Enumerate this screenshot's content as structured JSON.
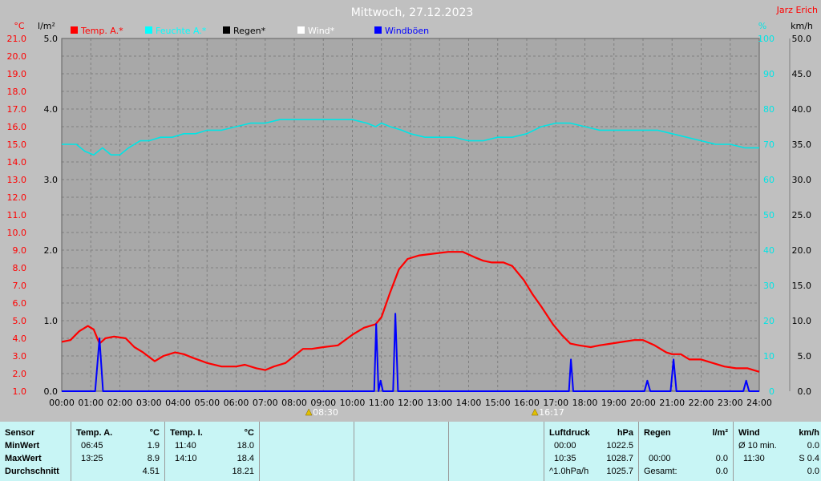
{
  "chart_data": {
    "type": "line",
    "title": "Mittwoch, 27.12.2023",
    "author": "Jarz Erich",
    "legend": [
      {
        "label": "Temp. A.*",
        "color": "#ff0000"
      },
      {
        "label": "Feuchte A.*",
        "color": "#00ffff"
      },
      {
        "label": "Regen*",
        "color": "#000000"
      },
      {
        "label": "Wind*",
        "color": "#ffffff"
      },
      {
        "label": "Windböen",
        "color": "#0000ff"
      }
    ],
    "axes": {
      "temp": {
        "unit": "°C",
        "range": [
          1.0,
          21.0
        ],
        "ticks": [
          "1.0",
          "2.0",
          "3.0",
          "4.0",
          "5.0",
          "6.0",
          "7.0",
          "8.0",
          "9.0",
          "10.0",
          "11.0",
          "12.0",
          "13.0",
          "14.0",
          "15.0",
          "16.0",
          "17.0",
          "18.0",
          "19.0",
          "20.0",
          "21.0"
        ]
      },
      "rain": {
        "unit": "l/m²",
        "range": [
          0.0,
          5.0
        ],
        "ticks": [
          "0.0",
          "1.0",
          "2.0",
          "3.0",
          "4.0",
          "5.0"
        ]
      },
      "humidity": {
        "unit": "%",
        "range": [
          0,
          100
        ],
        "ticks": [
          "0",
          "10",
          "20",
          "30",
          "40",
          "50",
          "60",
          "70",
          "80",
          "90",
          "100"
        ]
      },
      "wind": {
        "unit": "km/h",
        "range": [
          0.0,
          50.0
        ],
        "ticks": [
          "0.0",
          "5.0",
          "10.0",
          "15.0",
          "20.0",
          "25.0",
          "30.0",
          "35.0",
          "40.0",
          "45.0",
          "50.0"
        ]
      },
      "x": {
        "range": [
          0,
          24
        ],
        "ticks": [
          "00:00",
          "01:00",
          "02:00",
          "03:00",
          "04:00",
          "05:00",
          "06:00",
          "07:00",
          "08:00",
          "09:00",
          "10:00",
          "11:00",
          "12:00",
          "13:00",
          "14:00",
          "15:00",
          "16:00",
          "17:00",
          "18:00",
          "19:00",
          "20:00",
          "21:00",
          "22:00",
          "23:00",
          "24:00"
        ]
      }
    },
    "sun_events": [
      {
        "label": "08:30",
        "hour": 8.5
      },
      {
        "label": "16:17",
        "hour": 16.28
      }
    ],
    "series": [
      {
        "name": "Temp. A.*",
        "axis": "temp",
        "color": "#ff0000",
        "x": [
          0,
          0.3,
          0.6,
          0.9,
          1.1,
          1.3,
          1.5,
          1.8,
          2.2,
          2.5,
          2.8,
          3.2,
          3.5,
          3.9,
          4.2,
          4.5,
          5.0,
          5.5,
          6.0,
          6.3,
          6.7,
          7.0,
          7.3,
          7.7,
          8.0,
          8.3,
          8.6,
          9.0,
          9.5,
          10.0,
          10.4,
          10.8,
          11.0,
          11.3,
          11.6,
          11.9,
          12.3,
          12.8,
          13.3,
          13.8,
          14.2,
          14.5,
          14.8,
          15.2,
          15.5,
          15.9,
          16.2,
          16.5,
          16.9,
          17.2,
          17.5,
          17.8,
          18.2,
          18.5,
          18.9,
          19.3,
          19.7,
          20.0,
          20.4,
          20.8,
          21.0,
          21.3,
          21.6,
          22.0,
          22.4,
          22.8,
          23.2,
          23.6,
          24.0
        ],
        "y": [
          3.8,
          3.9,
          4.4,
          4.7,
          4.5,
          3.7,
          4.0,
          4.1,
          4.0,
          3.5,
          3.2,
          2.7,
          3.0,
          3.2,
          3.1,
          2.9,
          2.6,
          2.4,
          2.4,
          2.5,
          2.3,
          2.2,
          2.4,
          2.6,
          3.0,
          3.4,
          3.4,
          3.5,
          3.6,
          4.2,
          4.6,
          4.8,
          5.2,
          6.6,
          7.9,
          8.5,
          8.7,
          8.8,
          8.9,
          8.9,
          8.6,
          8.4,
          8.3,
          8.3,
          8.1,
          7.3,
          6.5,
          5.8,
          4.8,
          4.2,
          3.7,
          3.6,
          3.5,
          3.6,
          3.7,
          3.8,
          3.9,
          3.9,
          3.6,
          3.2,
          3.1,
          3.1,
          2.8,
          2.8,
          2.6,
          2.4,
          2.3,
          2.3,
          2.1
        ]
      },
      {
        "name": "Feuchte A.*",
        "axis": "humidity",
        "color": "#00e5e5",
        "x": [
          0,
          0.5,
          0.8,
          1.1,
          1.4,
          1.7,
          2.0,
          2.3,
          2.7,
          3.0,
          3.4,
          3.8,
          4.2,
          4.6,
          5.0,
          5.5,
          6.0,
          6.5,
          7.0,
          7.5,
          8.0,
          8.5,
          9.0,
          9.5,
          10.0,
          10.5,
          10.8,
          11.0,
          11.3,
          11.7,
          12.0,
          12.5,
          13.0,
          13.5,
          14.0,
          14.5,
          15.0,
          15.5,
          16.0,
          16.5,
          17.0,
          17.5,
          18.0,
          18.5,
          19.0,
          19.5,
          20.0,
          20.5,
          21.0,
          21.5,
          22.0,
          22.5,
          23.0,
          23.5,
          24.0
        ],
        "y": [
          70,
          70,
          68,
          67,
          69,
          67,
          67,
          69,
          71,
          71,
          72,
          72,
          73,
          73,
          74,
          74,
          75,
          76,
          76,
          77,
          77,
          77,
          77,
          77,
          77,
          76,
          75,
          76,
          75,
          74,
          73,
          72,
          72,
          72,
          71,
          71,
          72,
          72,
          73,
          75,
          76,
          76,
          75,
          74,
          74,
          74,
          74,
          74,
          73,
          72,
          71,
          70,
          70,
          69,
          69
        ]
      },
      {
        "name": "Windböen",
        "axis": "wind",
        "color": "#0000ff",
        "x": [
          0,
          1.15,
          1.3,
          1.42,
          1.55,
          10.75,
          10.82,
          10.9,
          10.97,
          11.05,
          11.12,
          11.18,
          11.25,
          11.3,
          11.4,
          11.48,
          11.57,
          11.65,
          17.45,
          17.52,
          17.6,
          17.68,
          20.05,
          20.15,
          20.25,
          20.95,
          21.05,
          21.15,
          23.45,
          23.55,
          23.65,
          24.0
        ],
        "y": [
          0,
          0,
          7.5,
          0,
          0,
          0,
          9.5,
          0,
          1.5,
          0,
          0,
          0,
          0,
          0,
          0,
          11.0,
          0,
          0,
          0,
          4.5,
          0,
          0,
          0,
          1.5,
          0,
          0,
          4.5,
          0,
          0,
          1.5,
          0,
          0
        ]
      }
    ]
  },
  "table": {
    "sensor": {
      "header": "Sensor",
      "rows": [
        "MinWert",
        "MaxWert",
        "Durchschnitt"
      ]
    },
    "temp_a": {
      "header": "Temp. A.",
      "unit": "°C",
      "rows": [
        {
          "time": "06:45",
          "value": "1.9"
        },
        {
          "time": "13:25",
          "value": "8.9"
        },
        {
          "time": "",
          "value": "4.51"
        }
      ]
    },
    "temp_i": {
      "header": "Temp. I.",
      "unit": "°C",
      "rows": [
        {
          "time": "11:40",
          "value": "18.0"
        },
        {
          "time": "14:10",
          "value": "18.4"
        },
        {
          "time": "",
          "value": "18.21"
        }
      ]
    },
    "pressure": {
      "header": "Luftdruck",
      "unit": "hPa",
      "rows": [
        {
          "time": "00:00",
          "value": "1022.5"
        },
        {
          "time": "10:35",
          "value": "1028.7"
        },
        {
          "time": "^1.0hPa/h",
          "value": "1025.7"
        }
      ]
    },
    "rain": {
      "header": "Regen",
      "unit": "l/m²",
      "rows": [
        {
          "time": "",
          "value": ""
        },
        {
          "time": "00:00",
          "value": "0.0"
        },
        {
          "time": "Gesamt:",
          "value": "0.0"
        }
      ]
    },
    "wind": {
      "header": "Wind",
      "unit": "km/h",
      "rows": [
        {
          "time": "Ø 10 min.",
          "value": "0.0"
        },
        {
          "time": "11:30",
          "value": "S 0.4"
        },
        {
          "time": "",
          "value": "0.0"
        }
      ]
    }
  }
}
